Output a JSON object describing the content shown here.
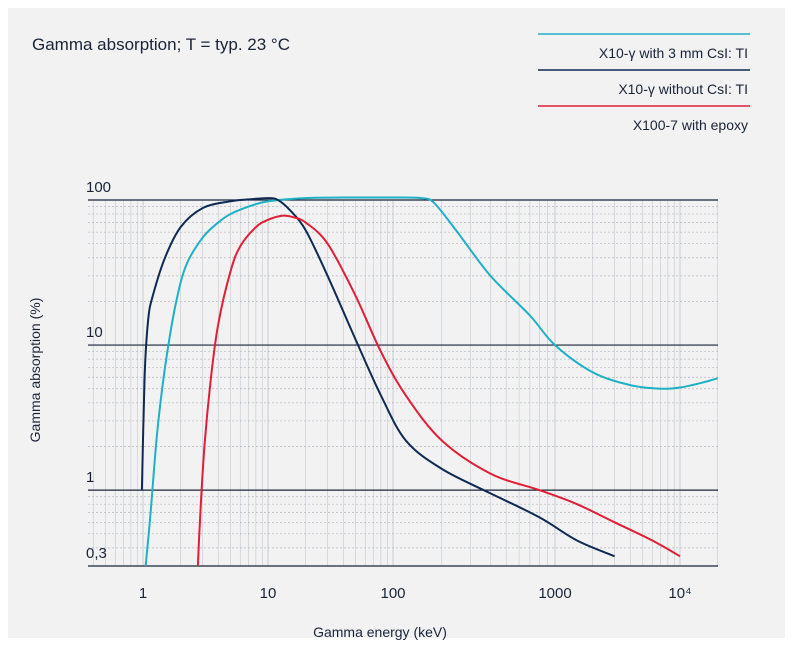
{
  "chart_data": {
    "type": "line",
    "title": "Gamma absorption; T = typ. 23 °C",
    "xlabel": "Gamma energy (keV)",
    "ylabel": "Gamma absorption (%)",
    "x_scale": "log",
    "y_scale": "log",
    "xlim": [
      0.5,
      20000
    ],
    "ylim": [
      0.3,
      100
    ],
    "x_ticks": [
      {
        "value": 1,
        "label": "1"
      },
      {
        "value": 10,
        "label": "10"
      },
      {
        "value": 100,
        "label": "100"
      },
      {
        "value": 1000,
        "label": "1000"
      },
      {
        "value": 10000,
        "label": "10⁴"
      }
    ],
    "y_ticks": [
      {
        "value": 100,
        "label": "100"
      },
      {
        "value": 10,
        "label": "10"
      },
      {
        "value": 1,
        "label": "1"
      },
      {
        "value": 0.3,
        "label": "0,3"
      }
    ],
    "grid": true,
    "legend_position": "top-right",
    "series": [
      {
        "name": "X10-γ with 3 mm CsI: TI",
        "color": "#1fb0c6",
        "points": [
          [
            1.05,
            0.3
          ],
          [
            1.15,
            0.7
          ],
          [
            1.3,
            2.5
          ],
          [
            1.5,
            7
          ],
          [
            1.8,
            18
          ],
          [
            2.2,
            35
          ],
          [
            3,
            55
          ],
          [
            4,
            70
          ],
          [
            5,
            80
          ],
          [
            7,
            90
          ],
          [
            10,
            98
          ],
          [
            20,
            103
          ],
          [
            50,
            104
          ],
          [
            100,
            104
          ],
          [
            150,
            103
          ],
          [
            180,
            95
          ],
          [
            250,
            60
          ],
          [
            400,
            30
          ],
          [
            700,
            16
          ],
          [
            1000,
            10
          ],
          [
            2000,
            6.5
          ],
          [
            4000,
            5.3
          ],
          [
            7000,
            5
          ],
          [
            10000,
            5.1
          ],
          [
            15000,
            5.5
          ],
          [
            20000,
            5.9
          ]
        ]
      },
      {
        "name": "X10-γ without CsI: TI",
        "color": "#0f2a52",
        "points": [
          [
            0.98,
            1
          ],
          [
            1.03,
            6
          ],
          [
            1.1,
            15
          ],
          [
            1.2,
            22
          ],
          [
            1.5,
            40
          ],
          [
            2,
            65
          ],
          [
            3,
            88
          ],
          [
            5,
            98
          ],
          [
            7,
            101
          ],
          [
            10,
            103
          ],
          [
            12,
            100
          ],
          [
            15,
            85
          ],
          [
            20,
            62
          ],
          [
            30,
            30
          ],
          [
            50,
            11
          ],
          [
            80,
            4.5
          ],
          [
            120,
            2.2
          ],
          [
            200,
            1.4
          ],
          [
            400,
            0.95
          ],
          [
            800,
            0.65
          ],
          [
            1500,
            0.45
          ],
          [
            3000,
            0.35
          ]
        ]
      },
      {
        "name": "X100-7 with epoxy",
        "color": "#e01e37",
        "points": [
          [
            2.75,
            0.3
          ],
          [
            2.85,
            0.6
          ],
          [
            3.1,
            2
          ],
          [
            3.5,
            6
          ],
          [
            4,
            14
          ],
          [
            5,
            32
          ],
          [
            6,
            48
          ],
          [
            8,
            65
          ],
          [
            10,
            73
          ],
          [
            13,
            78
          ],
          [
            16,
            76
          ],
          [
            20,
            70
          ],
          [
            30,
            50
          ],
          [
            50,
            22
          ],
          [
            80,
            9
          ],
          [
            120,
            4.5
          ],
          [
            200,
            2.2
          ],
          [
            400,
            1.3
          ],
          [
            800,
            1
          ],
          [
            1500,
            0.8
          ],
          [
            3000,
            0.6
          ],
          [
            6000,
            0.45
          ],
          [
            10000,
            0.35
          ]
        ]
      }
    ]
  }
}
